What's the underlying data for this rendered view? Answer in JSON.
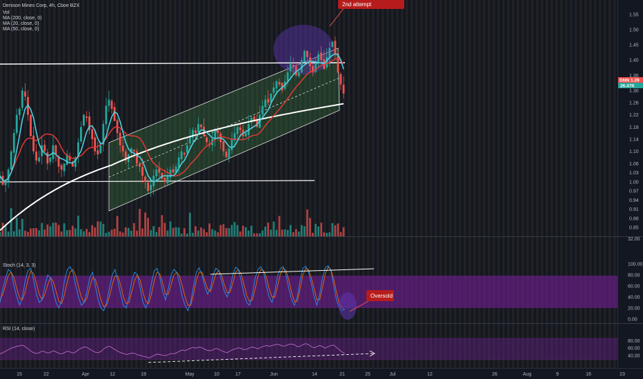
{
  "header": {
    "symbol_line": "Denison Mines Corp, 4h, Cboe BZX",
    "indicators": [
      "Vol",
      "MA (200, close, 0)",
      "MA (20, close, 0)",
      "MA (50, close, 0)"
    ]
  },
  "price_tag": {
    "symbol": "DNN",
    "value": "1.29",
    "volume": "26.47K"
  },
  "annotations": {
    "top_callout_line2": "2nd attempt",
    "oversold": "Oversold"
  },
  "colors": {
    "background": "#131722",
    "up": "#26a69a",
    "down": "#ef5350",
    "ma20": "#4dd0e1",
    "ma50": "#e53935",
    "ma200": "#ffffff",
    "channel_fill": "#4caf50",
    "stoch_band": "#7b1fa2",
    "callout": "#b71c1c",
    "stoch_k": "#2196f3",
    "stoch_d": "#ef6c00",
    "rsi_line": "#ba68c8"
  },
  "chart_data": [
    {
      "type": "candlestick",
      "title": "Denison Mines Corp, 4h, Cboe BZX",
      "x_ticks": [
        "15",
        "22",
        "Apr",
        "12",
        "19",
        "May",
        "10",
        "17",
        "Jun",
        "14",
        "21",
        "25",
        "Jul",
        "12",
        "26",
        "Aug",
        "9",
        "16",
        "23"
      ],
      "y_ticks": [
        1.55,
        1.5,
        1.45,
        1.4,
        1.35,
        1.3,
        1.26,
        1.22,
        1.18,
        1.14,
        1.1,
        1.06,
        1.03,
        1.0,
        0.97,
        0.94,
        0.91,
        0.88,
        0.85
      ],
      "ylim": [
        0.83,
        1.57
      ],
      "last_price": 1.29,
      "horizontal_levels": [
        1.35,
        0.968
      ],
      "series": [
        {
          "name": "MA (20, close, 0)",
          "role": "ma20"
        },
        {
          "name": "MA (50, close, 0)",
          "role": "ma50"
        },
        {
          "name": "MA (200, close, 0)",
          "role": "ma200"
        }
      ],
      "closes": [
        1.02,
        0.99,
        1.0,
        1.04,
        1.1,
        1.16,
        1.22,
        1.24,
        1.3,
        1.28,
        1.22,
        1.15,
        1.1,
        1.07,
        1.08,
        1.12,
        1.1,
        1.06,
        1.08,
        1.12,
        1.09,
        1.05,
        1.04,
        1.06,
        1.09,
        1.07,
        1.05,
        1.08,
        1.13,
        1.18,
        1.22,
        1.21,
        1.17,
        1.14,
        1.1,
        1.09,
        1.12,
        1.19,
        1.25,
        1.27,
        1.24,
        1.2,
        1.16,
        1.12,
        1.1,
        1.07,
        1.09,
        1.11,
        1.1,
        1.06,
        1.05,
        1.02,
        1.0,
        0.97,
        0.99,
        1.02,
        1.04,
        1.03,
        1.01,
        1.0,
        1.02,
        1.04,
        1.03,
        1.05,
        1.08,
        1.1,
        1.09,
        1.12,
        1.15,
        1.17,
        1.16,
        1.19,
        1.18,
        1.15,
        1.13,
        1.12,
        1.14,
        1.17,
        1.16,
        1.13,
        1.1,
        1.08,
        1.11,
        1.14,
        1.16,
        1.18,
        1.17,
        1.15,
        1.16,
        1.19,
        1.21,
        1.2,
        1.18,
        1.22,
        1.25,
        1.27,
        1.26,
        1.29,
        1.31,
        1.33,
        1.32,
        1.3,
        1.33,
        1.36,
        1.39,
        1.38,
        1.35,
        1.36,
        1.4,
        1.43,
        1.41,
        1.38,
        1.36,
        1.39,
        1.42,
        1.4,
        1.37,
        1.41,
        1.44,
        1.46,
        1.42,
        1.36,
        1.32,
        1.29
      ]
    },
    {
      "type": "line",
      "title": "Stoch (14, 3, 3)",
      "y_ticks": [
        100.0,
        80.0,
        60.0,
        40.0,
        20.0,
        0.0
      ],
      "ylim": [
        -5,
        108
      ],
      "band": [
        20,
        80
      ],
      "series": [
        {
          "name": "%K",
          "values": [
            30,
            55,
            75,
            90,
            85,
            60,
            40,
            25,
            40,
            70,
            88,
            92,
            70,
            45,
            30,
            35,
            60,
            80,
            75,
            50,
            30,
            20,
            35,
            70,
            90,
            95,
            85,
            60,
            40,
            25,
            30,
            50,
            75,
            85,
            60,
            35,
            20,
            15,
            30,
            55,
            80,
            90,
            70,
            45,
            25,
            20,
            40,
            70,
            85,
            80,
            55,
            30,
            20,
            35,
            65,
            88,
            92,
            75,
            50,
            35,
            55,
            80,
            90,
            85,
            65,
            40,
            25,
            15,
            30,
            60,
            85,
            93,
            80,
            60,
            45,
            55,
            80,
            92,
            88,
            70,
            50,
            40,
            55,
            80,
            94,
            90,
            70,
            45,
            30,
            25,
            45,
            75,
            90,
            95,
            85,
            60,
            40,
            30,
            50,
            78,
            92,
            95,
            80,
            55,
            35,
            25,
            40,
            70,
            92,
            96,
            85,
            65,
            40,
            25,
            45,
            75,
            93,
            97,
            88,
            60,
            35,
            20,
            15,
            18
          ]
        },
        {
          "name": "%D",
          "values": [
            35,
            45,
            62,
            80,
            85,
            75,
            55,
            38,
            35,
            50,
            72,
            87,
            82,
            65,
            45,
            35,
            45,
            62,
            75,
            68,
            50,
            32,
            28,
            45,
            68,
            85,
            90,
            78,
            58,
            40,
            30,
            38,
            58,
            75,
            72,
            55,
            35,
            22,
            25,
            40,
            62,
            78,
            78,
            62,
            40,
            28,
            30,
            50,
            70,
            80,
            70,
            48,
            32,
            28,
            45,
            70,
            85,
            82,
            65,
            45,
            45,
            62,
            80,
            85,
            78,
            60,
            40,
            25,
            25,
            45,
            70,
            85,
            85,
            70,
            55,
            50,
            65,
            82,
            88,
            80,
            62,
            48,
            48,
            65,
            85,
            90,
            82,
            62,
            42,
            32,
            35,
            55,
            78,
            90,
            88,
            75,
            55,
            40,
            40,
            60,
            82,
            92,
            88,
            70,
            48,
            32,
            32,
            55,
            80,
            92,
            90,
            75,
            55,
            35,
            35,
            58,
            82,
            94,
            90,
            72,
            48,
            28,
            20,
            17
          ]
        }
      ]
    },
    {
      "type": "line",
      "title": "RSI (14, close)",
      "y_ticks": [
        80.0,
        60.0,
        40.0
      ],
      "ylim": [
        25,
        92
      ],
      "band": [
        30,
        70
      ],
      "series": [
        {
          "name": "RSI",
          "values": [
            45,
            48,
            52,
            56,
            60,
            62,
            65,
            66,
            68,
            64,
            58,
            52,
            48,
            46,
            48,
            52,
            50,
            47,
            49,
            53,
            50,
            46,
            45,
            48,
            52,
            50,
            47,
            50,
            56,
            60,
            63,
            62,
            57,
            53,
            49,
            48,
            51,
            58,
            63,
            65,
            61,
            56,
            52,
            48,
            46,
            43,
            45,
            47,
            46,
            42,
            41,
            38,
            37,
            34,
            37,
            41,
            44,
            43,
            41,
            40,
            43,
            46,
            45,
            48,
            52,
            55,
            53,
            57,
            60,
            62,
            60,
            63,
            61,
            57,
            54,
            53,
            56,
            59,
            57,
            53,
            50,
            48,
            52,
            56,
            58,
            61,
            59,
            56,
            57,
            61,
            63,
            61,
            58,
            62,
            65,
            67,
            65,
            67,
            69,
            70,
            68,
            65,
            67,
            70,
            71,
            69,
            64,
            65,
            69,
            72,
            69,
            64,
            61,
            64,
            67,
            64,
            60,
            64,
            67,
            68,
            62,
            55,
            50,
            45
          ]
        }
      ]
    }
  ]
}
